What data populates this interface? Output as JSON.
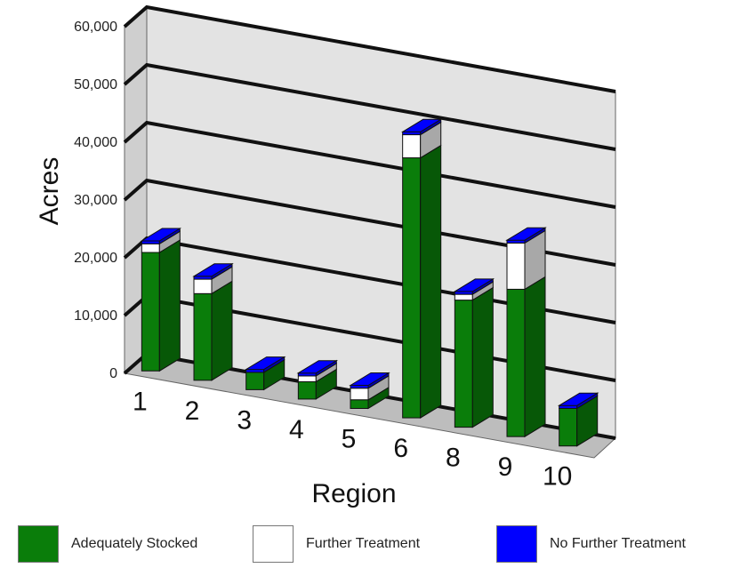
{
  "chart_data": {
    "type": "bar",
    "subtype": "stacked-3d",
    "title": "",
    "xlabel": "Region",
    "ylabel": "Acres",
    "ylim": [
      0,
      60000
    ],
    "yticks": [
      "0",
      "10,000",
      "20,000",
      "30,000",
      "40,000",
      "50,000",
      "60,000"
    ],
    "grid": true,
    "legend_position": "bottom",
    "categories": [
      "1",
      "2",
      "3",
      "4",
      "5",
      "6",
      "8",
      "9",
      "10"
    ],
    "series": [
      {
        "name": "Adequately Stocked",
        "color": "#0a7d0a",
        "values": [
          20500,
          15000,
          3000,
          3000,
          1500,
          45000,
          22000,
          25500,
          6500
        ]
      },
      {
        "name": "Further Treatment",
        "color": "#ffffff",
        "values": [
          1500,
          2500,
          0,
          1000,
          2000,
          4000,
          1000,
          8000,
          0
        ]
      },
      {
        "name": "No Further Treatment",
        "color": "#0000ff",
        "values": [
          500,
          500,
          500,
          500,
          500,
          500,
          500,
          500,
          500
        ]
      }
    ]
  },
  "legend": [
    {
      "label": "Adequately Stocked",
      "color": "#0a7d0a"
    },
    {
      "label": "Further Treatment",
      "color": "#ffffff"
    },
    {
      "label": "No Further Treatment",
      "color": "#0000ff"
    }
  ]
}
